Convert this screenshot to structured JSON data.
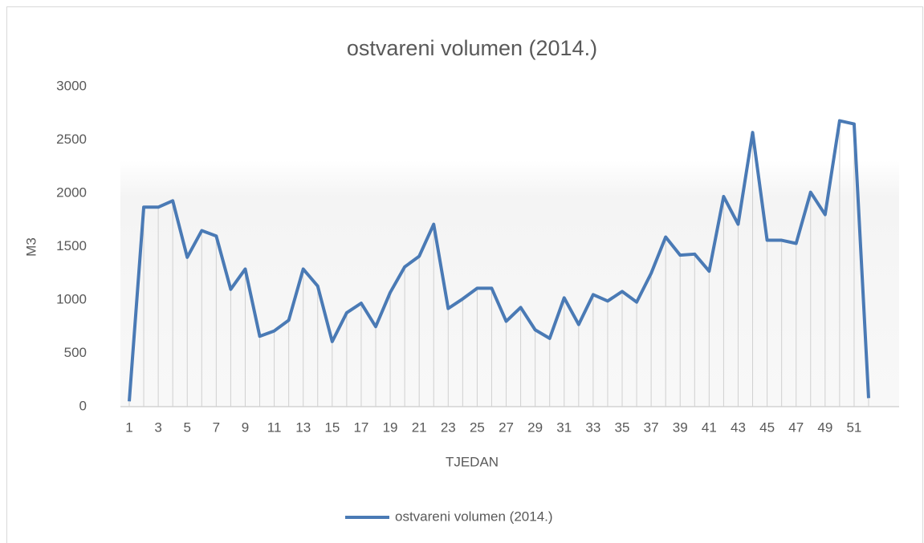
{
  "chart_data": {
    "type": "line",
    "title": "ostvareni volumen (2014.)",
    "x_label": "TJEDAN",
    "y_label": "M3",
    "categories": [
      1,
      null,
      3,
      null,
      5,
      null,
      7,
      null,
      9,
      null,
      11,
      null,
      13,
      null,
      15,
      null,
      17,
      null,
      19,
      null,
      21,
      null,
      23,
      null,
      25,
      null,
      27,
      null,
      29,
      null,
      31,
      null,
      33,
      null,
      35,
      null,
      37,
      null,
      39,
      null,
      41,
      null,
      43,
      null,
      45,
      null,
      47,
      null,
      49,
      null,
      51,
      null
    ],
    "series": [
      {
        "name": "ostvareni volumen (2014.)",
        "color": "#4a7ab5",
        "values": [
          50,
          1870,
          1870,
          1930,
          1400,
          1650,
          1600,
          1100,
          1290,
          660,
          710,
          810,
          1290,
          1130,
          610,
          880,
          970,
          750,
          1070,
          1310,
          1410,
          1710,
          920,
          1010,
          1110,
          1110,
          800,
          930,
          720,
          640,
          1020,
          770,
          1050,
          990,
          1080,
          980,
          1250,
          1590,
          1420,
          1430,
          1270,
          1970,
          1710,
          2570,
          1560,
          1560,
          1530,
          2010,
          1800,
          2680,
          2650,
          80
        ]
      }
    ],
    "ylim": [
      0,
      3000
    ],
    "yticks": [
      0,
      500,
      1000,
      1500,
      2000,
      2500,
      3000
    ],
    "grid": false,
    "legend": "bottom"
  }
}
